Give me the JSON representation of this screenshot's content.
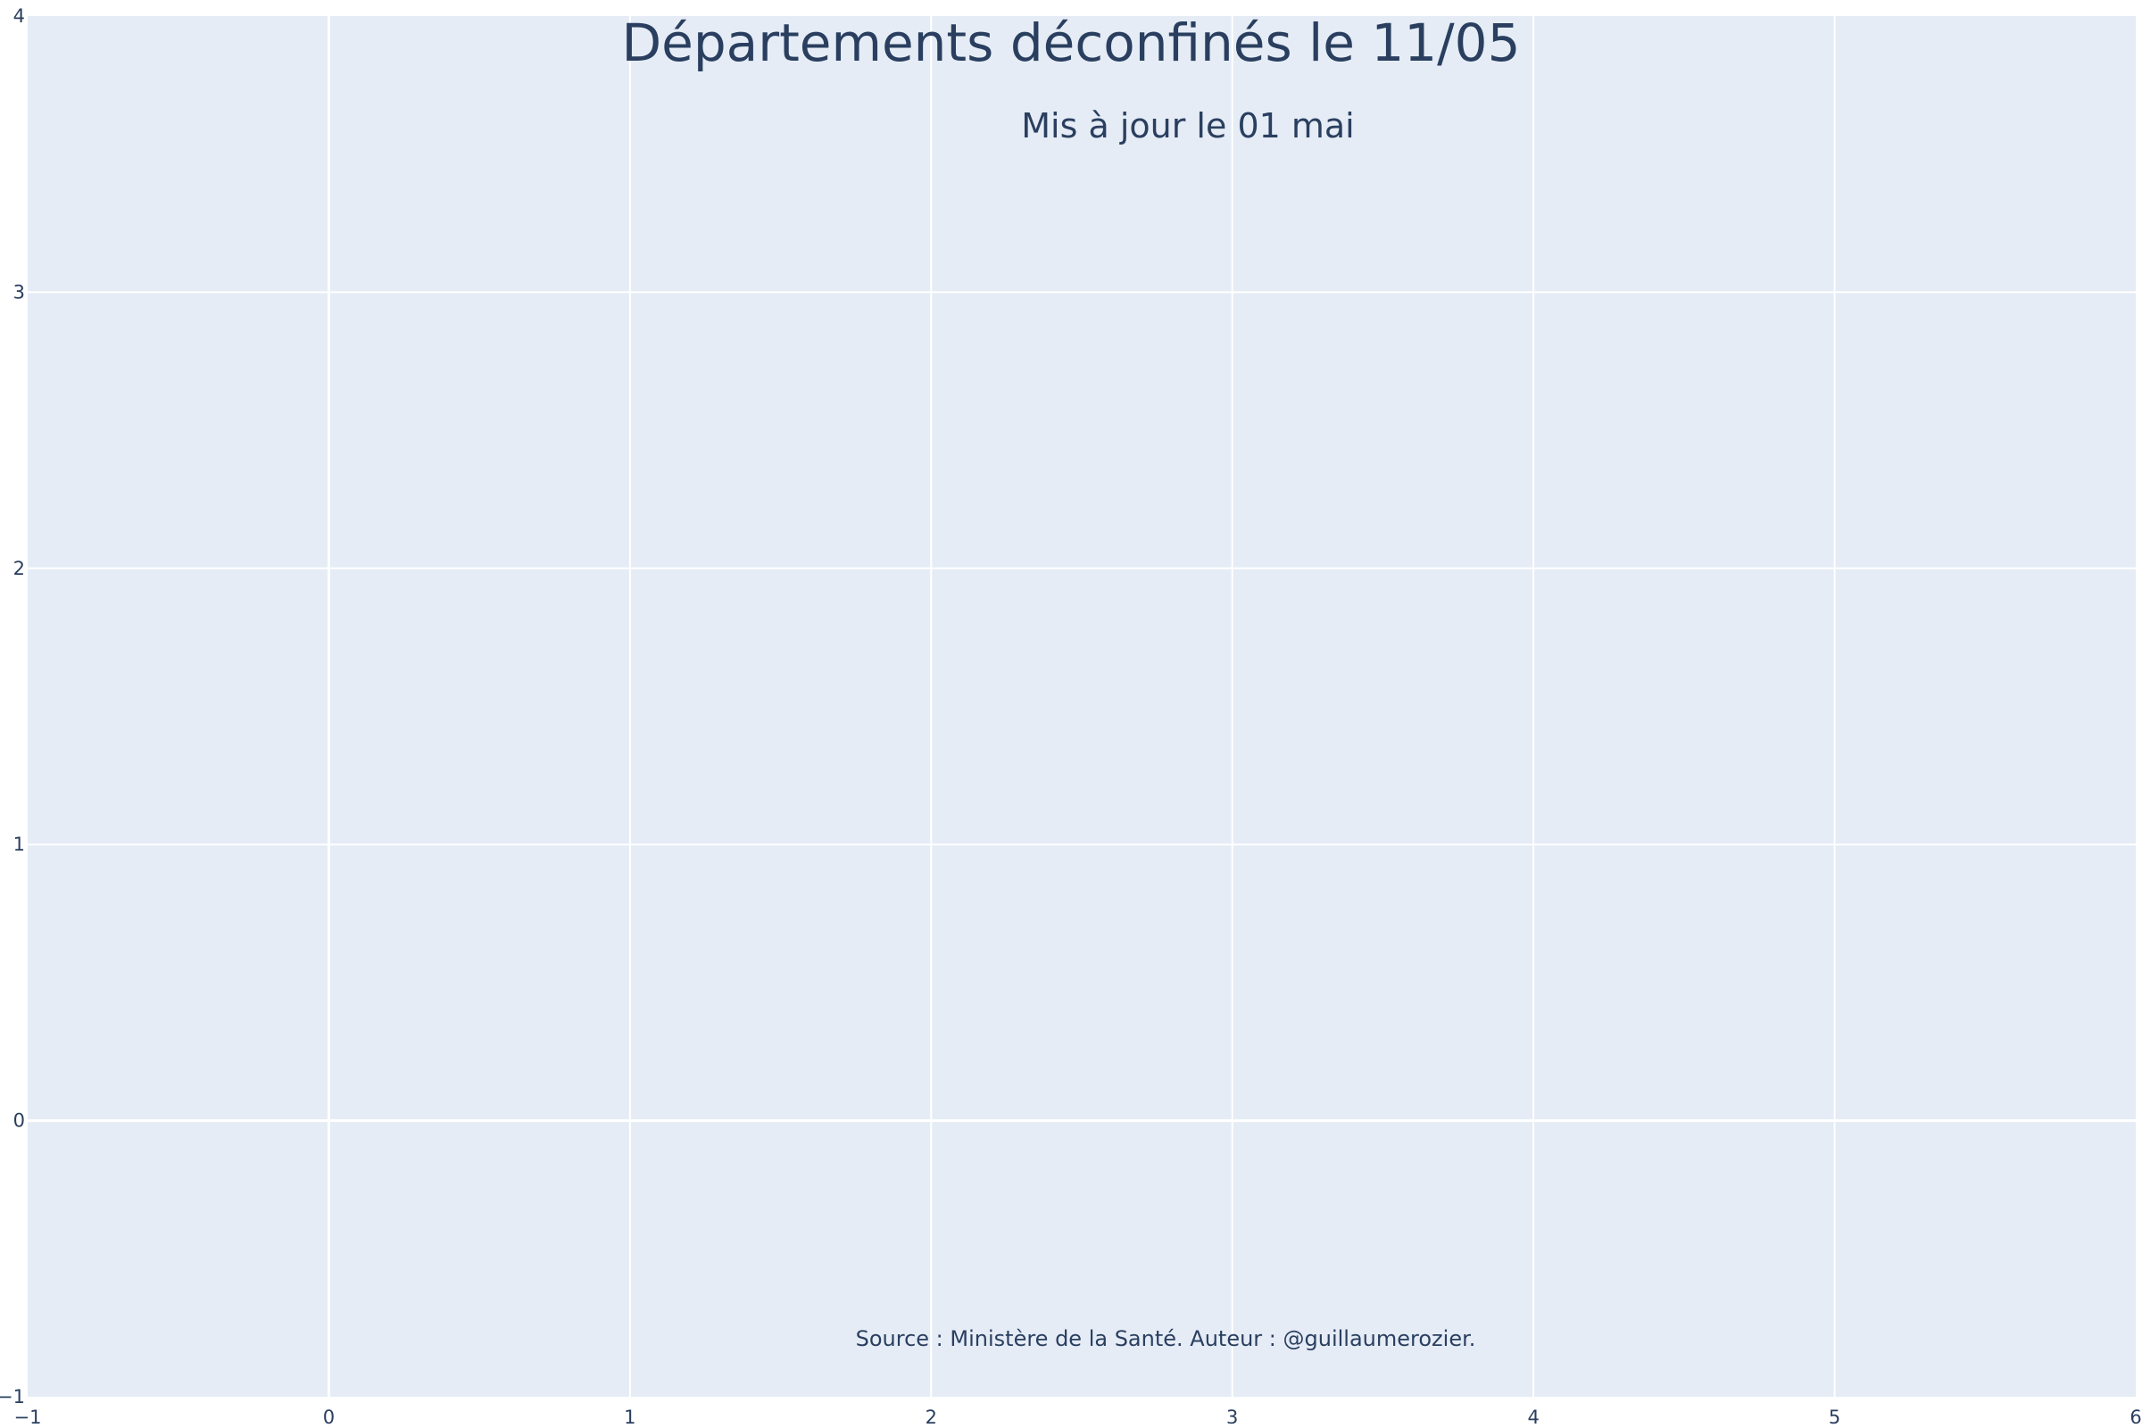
{
  "chart_data": {
    "type": "scatter",
    "title": "Départements déconfinés le 11/05",
    "subtitle": "Mis à jour le 01 mai",
    "annotation": "Source : Ministère de la Santé. Auteur : @guillaumerozier.",
    "xlabel": "",
    "ylabel": "",
    "xlim": [
      -1,
      6
    ],
    "ylim": [
      -1,
      4
    ],
    "x_ticks": [
      "−1",
      "0",
      "1",
      "2",
      "3",
      "4",
      "5",
      "6"
    ],
    "y_ticks": [
      "−1",
      "0",
      "1",
      "2",
      "3",
      "4"
    ],
    "grid": true,
    "series": [],
    "colors": {
      "plot_background": "#E5ECF6",
      "gridline": "#FFFFFF",
      "text": "#2a3f5f"
    }
  }
}
